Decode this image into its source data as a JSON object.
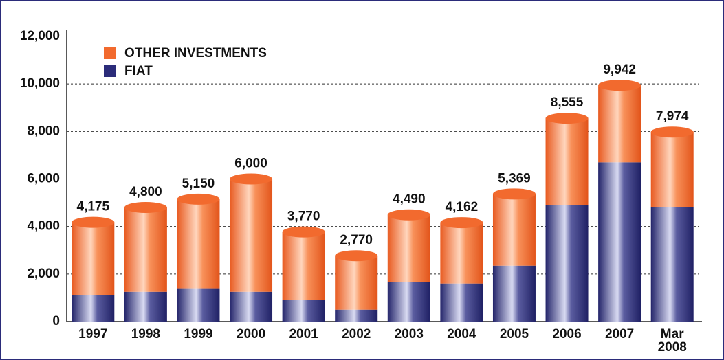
{
  "chart_data": {
    "type": "stacked-cylinder-bar",
    "categories": [
      "1997",
      "1998",
      "1999",
      "2000",
      "2001",
      "2002",
      "2003",
      "2004",
      "2005",
      "2006",
      "2007",
      "Mar\n2008"
    ],
    "series": [
      {
        "name": "FIAT",
        "color": "#2b2c7a",
        "values": [
          1100,
          1250,
          1400,
          1250,
          900,
          500,
          1650,
          1600,
          2350,
          4900,
          6700,
          4800
        ]
      },
      {
        "name": "OTHER INVESTMENTS",
        "color": "#f26a2e",
        "values": [
          3075,
          3550,
          3750,
          4750,
          2870,
          2270,
          2840,
          2562,
          3019,
          3655,
          3242,
          3174
        ]
      }
    ],
    "totals": [
      4175,
      4800,
      5150,
      6000,
      3770,
      2770,
      4490,
      4162,
      5369,
      8555,
      9942,
      7974
    ],
    "value_labels": [
      "4,175",
      "4,800",
      "5,150",
      "6,000",
      "3,770",
      "2,770",
      "4,490",
      "4,162",
      "5,369",
      "8,555",
      "9,942",
      "7,974"
    ],
    "ylim": [
      0,
      12000
    ],
    "yticks": [
      {
        "value": 0,
        "label": "0"
      },
      {
        "value": 2000,
        "label": "2,000"
      },
      {
        "value": 4000,
        "label": "4,000"
      },
      {
        "value": 6000,
        "label": "6,000"
      },
      {
        "value": 8000,
        "label": "8,000"
      },
      {
        "value": 10000,
        "label": "10,000"
      },
      {
        "value": 12000,
        "label": "12,000"
      }
    ],
    "grid": true
  }
}
